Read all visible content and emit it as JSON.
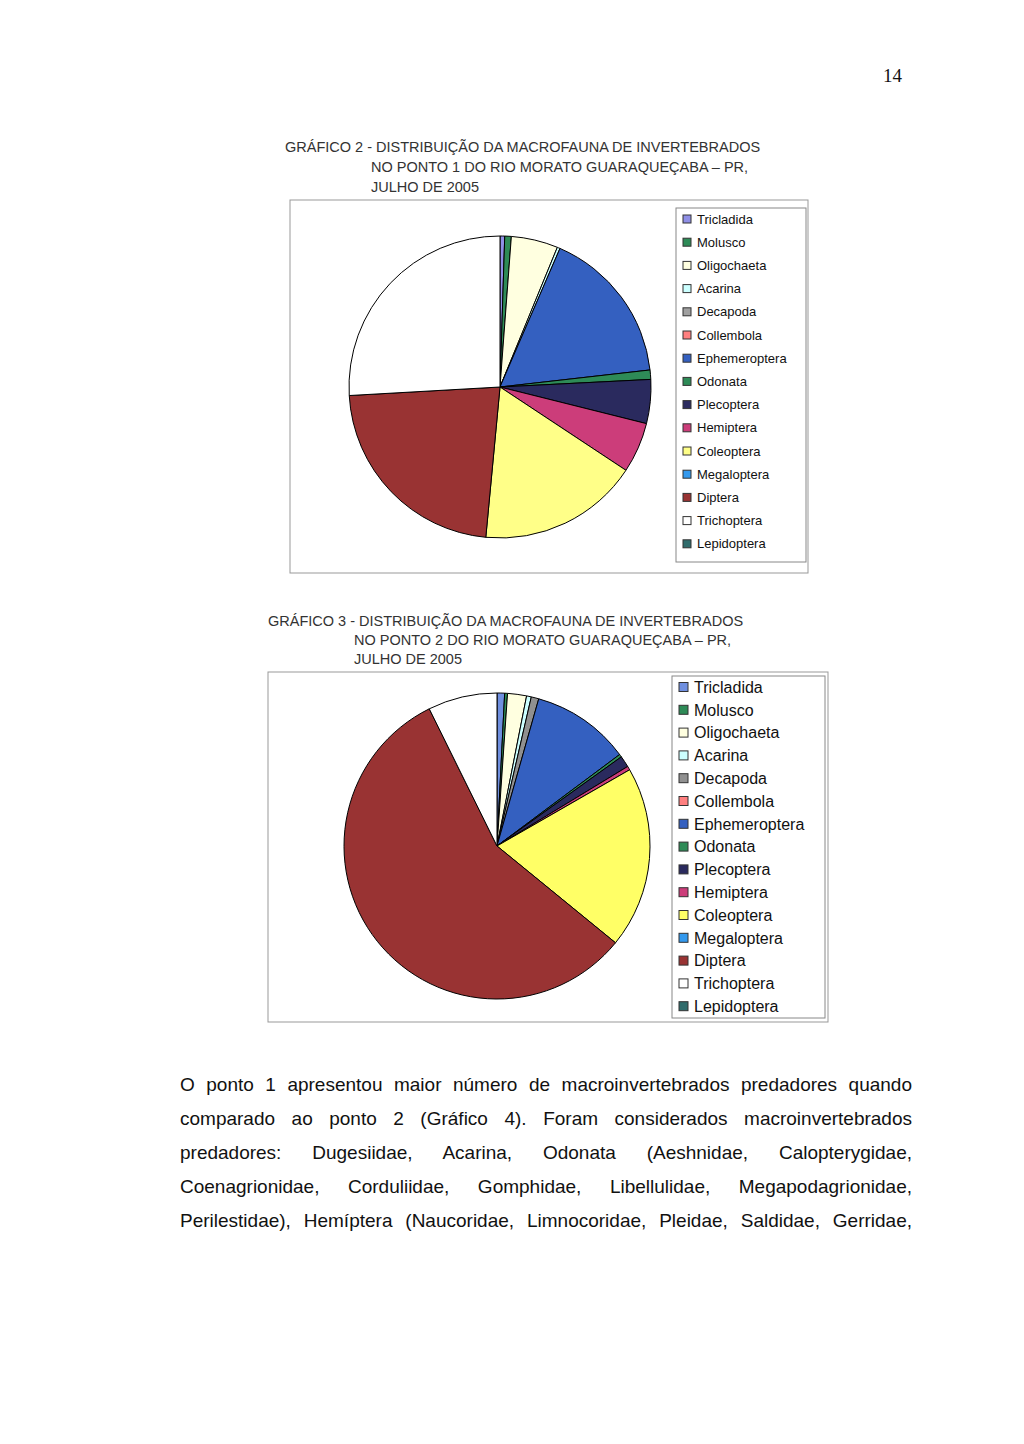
{
  "page_number": "14",
  "chart_data": [
    {
      "type": "pie",
      "title": "GRÁFICO 2 - DISTRIBUIÇÃO DA MACROFAUNA DE INVERTEBRADOS\nNO PONTO 1 DO RIO MORATO GUARAQUEÇABA – PR,\nJULHO DE 2005",
      "categories": [
        "Tricladida",
        "Molusco",
        "Oligochaeta",
        "Acarina",
        "Decapoda",
        "Collembola",
        "Ephemeroptera",
        "Odonata",
        "Plecoptera",
        "Hemiptera",
        "Coleoptera",
        "Megaloptera",
        "Diptera",
        "Trichoptera",
        "Lepidoptera"
      ],
      "values": [
        0.5,
        0.7,
        5.0,
        0.3,
        0,
        0,
        16.7,
        1.0,
        4.7,
        5.4,
        17.2,
        0,
        22.6,
        25.9,
        0
      ],
      "colors": [
        "#8f8fe6",
        "#2e8b57",
        "#ffffe0",
        "#ccffff",
        "#a0a0a0",
        "#ff8080",
        "#3460c0",
        "#2e8b57",
        "#2a2a5e",
        "#cc3d7a",
        "#ffff88",
        "#3399ee",
        "#993333",
        "#ffffff",
        "#2f6b6b"
      ],
      "legend": "right"
    },
    {
      "type": "pie",
      "title": "GRÁFICO 3 - DISTRIBUIÇÃO DA MACROFAUNA DE INVERTEBRADOS\nNO PONTO 2 DO RIO MORATO GUARAQUEÇABA – PR,\nJULHO DE 2005",
      "categories": [
        "Tricladida",
        "Molusco",
        "Oligochaeta",
        "Acarina",
        "Decapoda",
        "Collembola",
        "Ephemeroptera",
        "Odonata",
        "Plecoptera",
        "Hemiptera",
        "Coleoptera",
        "Megaloptera",
        "Diptera",
        "Trichoptera",
        "Lepidoptera"
      ],
      "values": [
        0.8,
        0.3,
        2.0,
        0.5,
        0.8,
        0,
        10.4,
        0.3,
        1.2,
        0.4,
        19.2,
        0,
        56.8,
        7.3,
        0
      ],
      "colors": [
        "#6f8fdf",
        "#2e8b57",
        "#ffffe0",
        "#ccffff",
        "#909090",
        "#ff8080",
        "#3460c0",
        "#2e8b57",
        "#2a2a5e",
        "#cc3d7a",
        "#ffff66",
        "#3399ee",
        "#993333",
        "#ffffff",
        "#2f6b6b"
      ],
      "legend": "right"
    }
  ],
  "paragraph": "O ponto 1 apresentou maior número de macroinvertebrados predadores quando comparado ao ponto 2 (Gráfico 4). Foram considerados macroinvertebrados predadores: Dugesiidae, Acarina, Odonata (Aeshnidae, Calopterygidae, Coenagrionidae, Corduliidae, Gomphidae, Libellulidae, Megapodagrionidae, Perilestidae), Hemíptera (Naucoridae, Limnocoridae, Pleidae, Saldidae, Gerridae,"
}
